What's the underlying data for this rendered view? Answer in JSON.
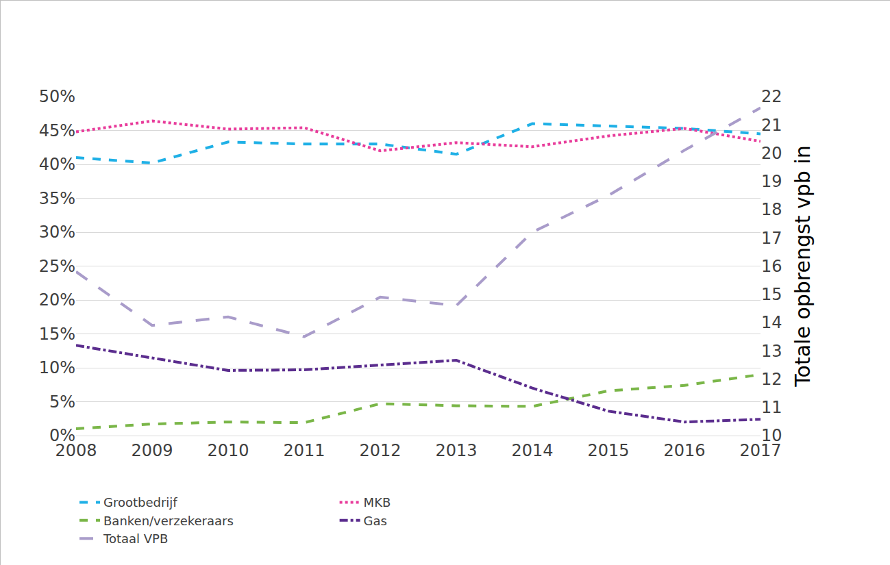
{
  "chart_data": {
    "type": "line",
    "y2_title": "Totale opbrengst vpb in",
    "categories": [
      "2008",
      "2009",
      "2010",
      "2011",
      "2012",
      "2013",
      "2014",
      "2015",
      "2016",
      "2017"
    ],
    "series": [
      {
        "name": "Grootbedrijf",
        "color": "#1fb0e6",
        "line_style": "dash",
        "values": [
          41.0,
          40.2,
          43.3,
          43.0,
          43.0,
          41.5,
          46.0,
          45.6,
          45.3,
          44.5
        ]
      },
      {
        "name": "MKB",
        "color": "#e83c9b",
        "line_style": "dot",
        "values": [
          44.8,
          46.4,
          45.2,
          45.4,
          42.0,
          43.2,
          42.6,
          44.2,
          45.3,
          43.4
        ]
      },
      {
        "name": "Banken/verzekeraars",
        "color": "#7ab648",
        "line_style": "dash",
        "values": [
          1.0,
          1.7,
          2.0,
          1.9,
          4.7,
          4.4,
          4.3,
          6.6,
          7.4,
          9.0
        ]
      },
      {
        "name": "Gas",
        "color": "#5b2d8e",
        "line_style": "dashdot",
        "values": [
          13.3,
          11.5,
          9.6,
          9.7,
          10.4,
          11.1,
          7.0,
          3.6,
          2.0,
          2.4
        ]
      },
      {
        "name": "Totaal VPB",
        "color": "#a99cca",
        "line_style": "longdash",
        "axis": "y2",
        "values": [
          15.8,
          13.9,
          14.2,
          13.5,
          14.9,
          14.6,
          17.2,
          18.5,
          20.1,
          21.6
        ]
      }
    ],
    "ylim": [
      0,
      50
    ],
    "yticks": [
      {
        "value": 0,
        "label": "0%"
      },
      {
        "value": 5,
        "label": "5%"
      },
      {
        "value": 10,
        "label": "10%"
      },
      {
        "value": 15,
        "label": "15%"
      },
      {
        "value": 20,
        "label": "20%"
      },
      {
        "value": 25,
        "label": "25%"
      },
      {
        "value": 30,
        "label": "30%"
      },
      {
        "value": 35,
        "label": "35%"
      },
      {
        "value": 40,
        "label": "40%"
      },
      {
        "value": 45,
        "label": "45%"
      },
      {
        "value": 50,
        "label": "50%"
      }
    ],
    "y2lim": [
      10,
      22
    ],
    "y2ticks": [
      10,
      11,
      12,
      13,
      14,
      15,
      16,
      17,
      18,
      19,
      20,
      21,
      22
    ],
    "grid": true,
    "legend": "bottom"
  }
}
